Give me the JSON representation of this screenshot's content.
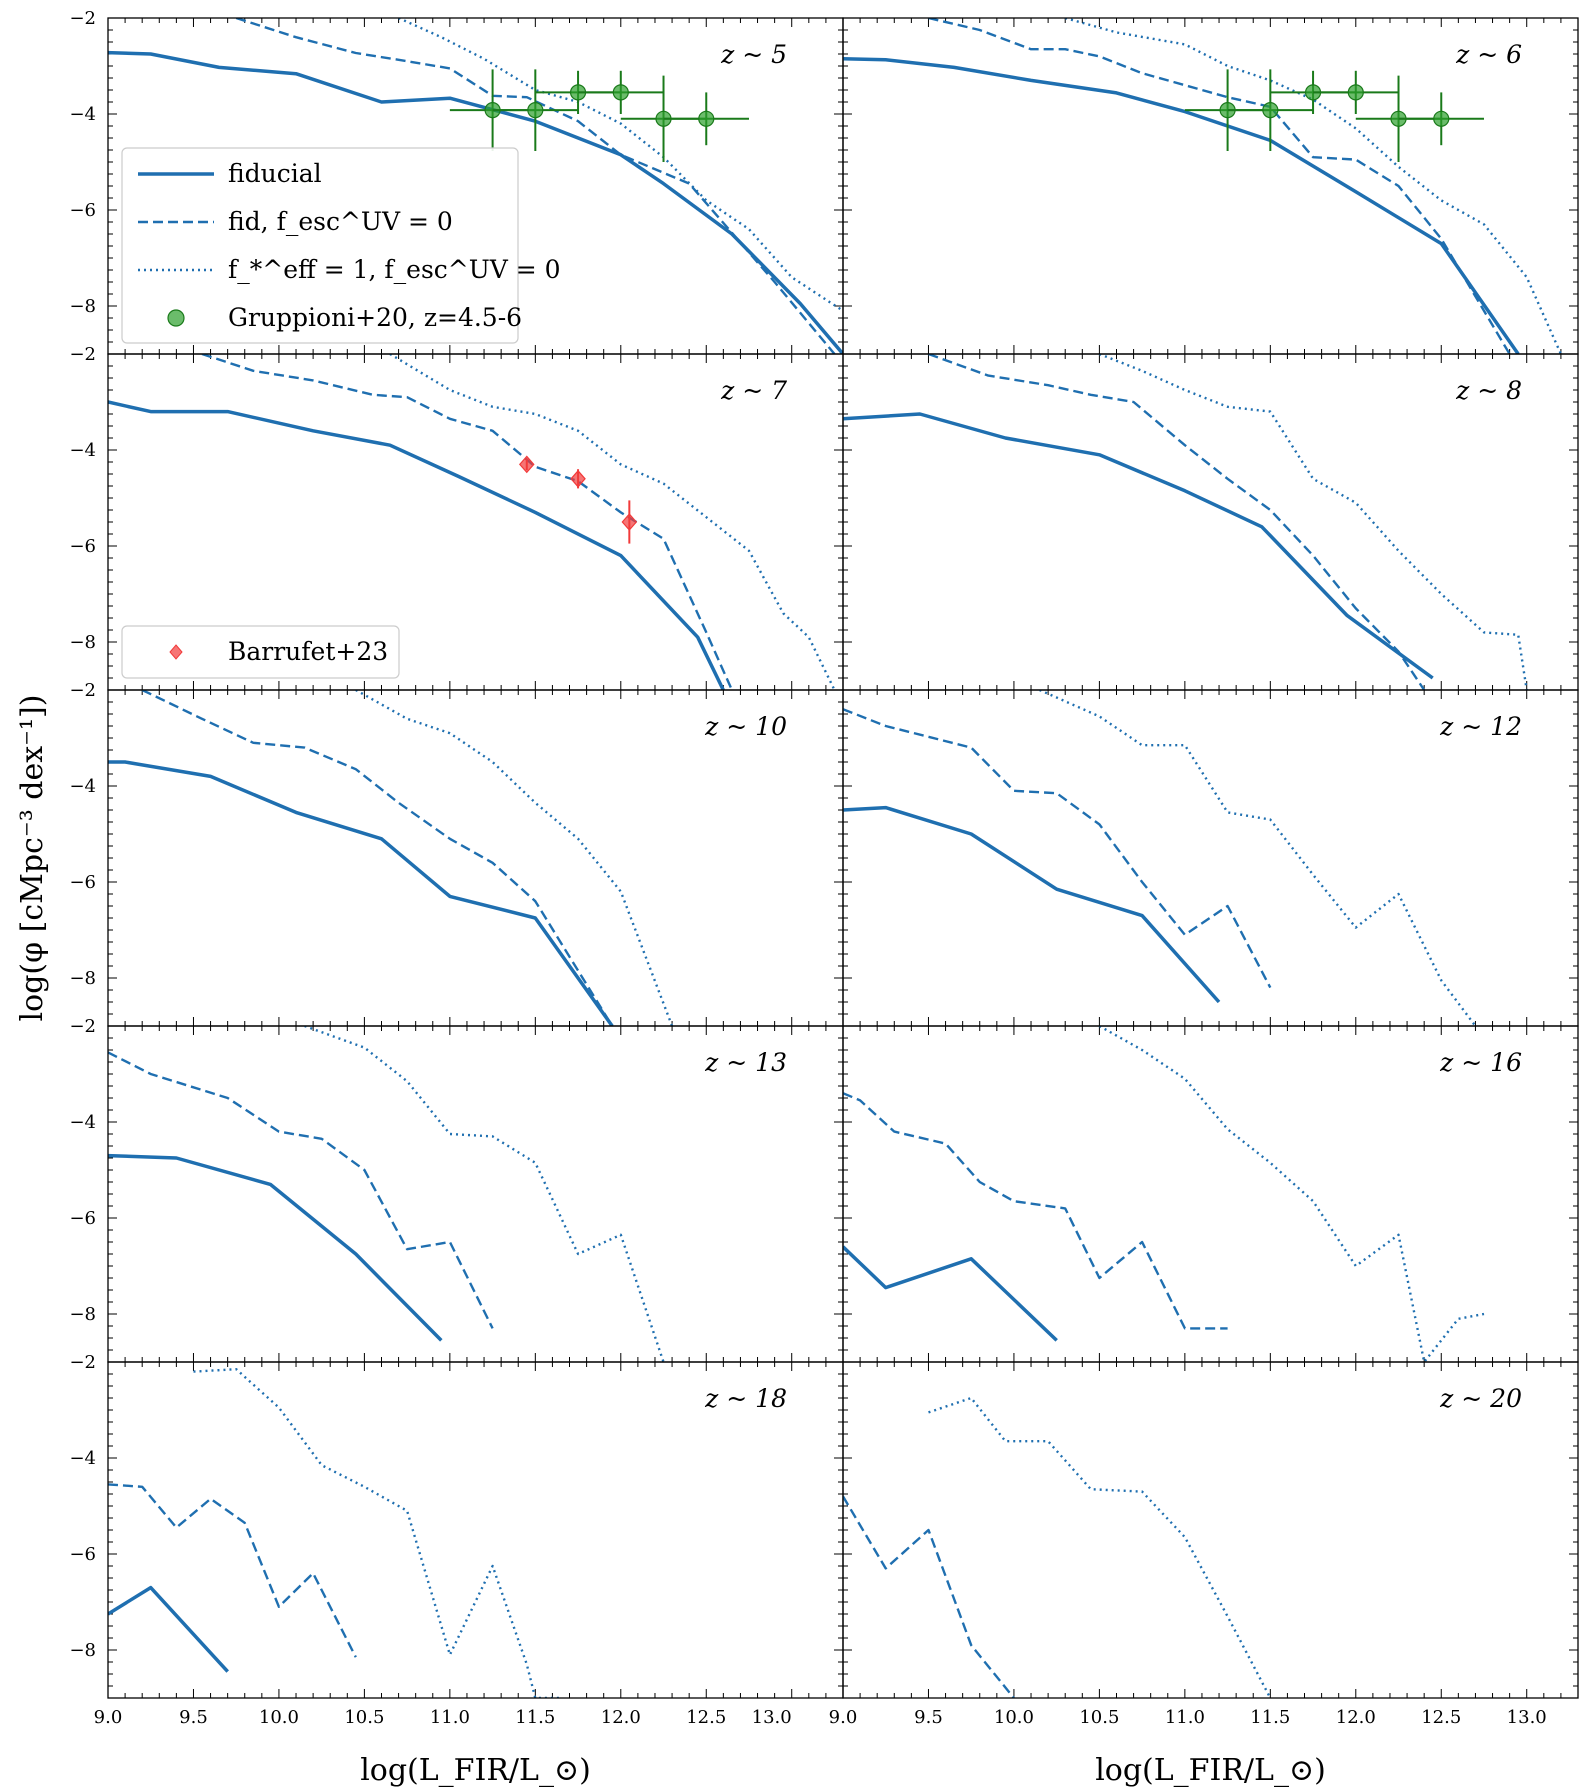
{
  "figure": {
    "xlabel": "log(L_FIR/L_⊙)",
    "ylabel": "log(φ [cMpc⁻³ dex⁻¹])"
  },
  "colors": {
    "model": "#1f6fb0",
    "gruppioni": "#2ca02c",
    "gruppioni_edge": "#1a7a1a",
    "barrufet": "#f23a3a"
  },
  "chart_data": [
    {
      "type": "line",
      "panel": "z ~ 5",
      "xlim": [
        9.0,
        13.3
      ],
      "ylim": [
        -9.0,
        -2.0
      ],
      "xticks": [],
      "yticks": [
        "−2",
        "−4",
        "−6",
        "−8"
      ],
      "series": [
        {
          "name": "fiducial",
          "style": "solid",
          "x": [
            9.0,
            9.25,
            9.65,
            10.1,
            10.6,
            11.0,
            11.5,
            12.0,
            12.25,
            12.65,
            13.05,
            13.3
          ],
          "y": [
            -2.72,
            -2.75,
            -3.03,
            -3.16,
            -3.75,
            -3.67,
            -4.15,
            -4.85,
            -5.45,
            -6.5,
            -7.95,
            -9.0
          ]
        },
        {
          "name": "fid, f_esc^UV = 0",
          "style": "dashed",
          "x": [
            9.75,
            10.1,
            10.45,
            10.75,
            11.0,
            11.25,
            11.45,
            11.75,
            12.0,
            12.4,
            12.9,
            13.25
          ],
          "y": [
            -2.0,
            -2.4,
            -2.73,
            -2.9,
            -3.05,
            -3.62,
            -3.65,
            -4.15,
            -4.85,
            -5.45,
            -7.5,
            -9.0
          ]
        },
        {
          "name": "f_*^eff = 1, f_esc^UV = 0",
          "style": "dotted",
          "x": [
            10.7,
            10.95,
            11.2,
            11.5,
            11.75,
            12.0,
            12.25,
            12.5,
            12.75,
            13.0,
            13.3
          ],
          "y": [
            -2.0,
            -2.4,
            -2.85,
            -3.5,
            -3.75,
            -4.2,
            -4.9,
            -5.8,
            -6.4,
            -7.4,
            -8.1
          ]
        }
      ],
      "points": {
        "name": "Gruppioni+20, z=4.5-6",
        "x": [
          11.25,
          11.5,
          11.75,
          12.0,
          12.25,
          12.5
        ],
        "y": [
          -3.92,
          -3.92,
          -3.55,
          -3.55,
          -4.1,
          -4.1
        ],
        "x_err": [
          0.25,
          0.25,
          0.25,
          0.25,
          0.25,
          0.25
        ],
        "y_err": [
          0.85,
          0.85,
          0.45,
          0.45,
          0.9,
          0.55
        ]
      },
      "legend": [
        "fiducial",
        "fid, f_esc^UV = 0",
        "f_*^eff = 1, f_esc^UV = 0",
        "Gruppioni+20, z=4.5-6"
      ]
    },
    {
      "type": "line",
      "panel": "z ~ 6",
      "xlim": [
        9.0,
        13.3
      ],
      "ylim": [
        -9.0,
        -2.0
      ],
      "xticks": [],
      "yticks": [],
      "series": [
        {
          "name": "fiducial",
          "style": "solid",
          "x": [
            9.0,
            9.25,
            9.65,
            10.1,
            10.6,
            11.0,
            11.5,
            12.0,
            12.5,
            12.95
          ],
          "y": [
            -2.85,
            -2.87,
            -3.03,
            -3.3,
            -3.56,
            -3.95,
            -4.55,
            -5.62,
            -6.7,
            -9.0
          ]
        },
        {
          "name": "fid, f_esc^UV = 0",
          "style": "dashed",
          "x": [
            9.5,
            9.8,
            10.1,
            10.3,
            10.5,
            10.75,
            11.0,
            11.25,
            11.5,
            11.75,
            12.0,
            12.25,
            12.5,
            12.9
          ],
          "y": [
            -2.0,
            -2.25,
            -2.65,
            -2.65,
            -2.8,
            -3.15,
            -3.4,
            -3.65,
            -3.85,
            -4.9,
            -4.95,
            -5.5,
            -6.6,
            -9.0
          ]
        },
        {
          "name": "f_*^eff = 1, f_esc^UV = 0",
          "style": "dotted",
          "x": [
            10.3,
            10.6,
            11.0,
            11.25,
            11.5,
            11.75,
            12.0,
            12.25,
            12.5,
            12.75,
            13.0,
            13.2
          ],
          "y": [
            -2.0,
            -2.3,
            -2.55,
            -3.0,
            -3.3,
            -3.7,
            -4.3,
            -5.1,
            -5.8,
            -6.3,
            -7.4,
            -9.0
          ]
        }
      ],
      "points": {
        "name": "Gruppioni+20, z=4.5-6",
        "x": [
          11.25,
          11.5,
          11.75,
          12.0,
          12.25,
          12.5
        ],
        "y": [
          -3.92,
          -3.92,
          -3.55,
          -3.55,
          -4.1,
          -4.1
        ],
        "x_err": [
          0.25,
          0.25,
          0.25,
          0.25,
          0.25,
          0.25
        ],
        "y_err": [
          0.85,
          0.85,
          0.45,
          0.45,
          0.9,
          0.55
        ]
      }
    },
    {
      "type": "line",
      "panel": "z ~ 7",
      "xlim": [
        9.0,
        13.3
      ],
      "ylim": [
        -9.0,
        -2.0
      ],
      "xticks": [],
      "yticks": [
        "−2",
        "−4",
        "−6",
        "−8"
      ],
      "series": [
        {
          "name": "fiducial",
          "style": "solid",
          "x": [
            9.0,
            9.25,
            9.7,
            10.2,
            10.65,
            11.05,
            11.5,
            12.0,
            12.45,
            12.6
          ],
          "y": [
            -3.0,
            -3.2,
            -3.2,
            -3.6,
            -3.9,
            -4.55,
            -5.3,
            -6.2,
            -7.9,
            -9.0
          ]
        },
        {
          "name": "fid, f_esc^UV = 0",
          "style": "dashed",
          "x": [
            9.55,
            9.85,
            10.2,
            10.55,
            10.75,
            11.0,
            11.25,
            11.5,
            11.75,
            12.0,
            12.25,
            12.5,
            12.65
          ],
          "y": [
            -2.0,
            -2.35,
            -2.55,
            -2.85,
            -2.9,
            -3.35,
            -3.6,
            -4.35,
            -4.65,
            -5.3,
            -5.85,
            -7.8,
            -9.0
          ]
        },
        {
          "name": "f_*^eff = 1, f_esc^UV = 0",
          "style": "dotted",
          "x": [
            10.65,
            11.0,
            11.25,
            11.5,
            11.75,
            12.0,
            12.25,
            12.5,
            12.75,
            12.95,
            13.1,
            13.25
          ],
          "y": [
            -2.0,
            -2.75,
            -3.1,
            -3.25,
            -3.6,
            -4.3,
            -4.7,
            -5.4,
            -6.1,
            -7.4,
            -7.9,
            -9.0
          ]
        }
      ],
      "points": {
        "name": "Barrufet+23",
        "x": [
          11.45,
          11.75,
          12.05
        ],
        "y": [
          -4.3,
          -4.6,
          -5.5
        ],
        "y_err": [
          0.12,
          0.2,
          0.45
        ]
      },
      "legend": [
        "Barrufet+23"
      ]
    },
    {
      "type": "line",
      "panel": "z ~ 8",
      "xlim": [
        9.0,
        13.3
      ],
      "ylim": [
        -9.0,
        -2.0
      ],
      "xticks": [],
      "yticks": [],
      "series": [
        {
          "name": "fiducial",
          "style": "solid",
          "x": [
            9.0,
            9.45,
            9.95,
            10.5,
            11.0,
            11.45,
            11.95,
            12.45
          ],
          "y": [
            -3.35,
            -3.25,
            -3.75,
            -4.1,
            -4.85,
            -5.6,
            -7.45,
            -8.75
          ]
        },
        {
          "name": "fid, f_esc^UV = 0",
          "style": "dashed",
          "x": [
            9.5,
            9.85,
            10.2,
            10.45,
            10.7,
            11.0,
            11.25,
            11.5,
            11.75,
            12.0,
            12.25,
            12.4
          ],
          "y": [
            -2.0,
            -2.45,
            -2.65,
            -2.85,
            -3.0,
            -3.9,
            -4.6,
            -5.25,
            -6.2,
            -7.3,
            -8.2,
            -9.0
          ]
        },
        {
          "name": "f_*^eff = 1, f_esc^UV = 0",
          "style": "dotted",
          "x": [
            10.5,
            10.75,
            11.0,
            11.25,
            11.5,
            11.75,
            12.0,
            12.25,
            12.5,
            12.75,
            12.95,
            13.0
          ],
          "y": [
            -2.0,
            -2.35,
            -2.75,
            -3.1,
            -3.2,
            -4.6,
            -5.1,
            -6.1,
            -7.0,
            -7.8,
            -7.85,
            -9.0
          ]
        }
      ]
    },
    {
      "type": "line",
      "panel": "z ~ 10",
      "xlim": [
        9.0,
        13.3
      ],
      "ylim": [
        -9.0,
        -2.0
      ],
      "xticks": [],
      "yticks": [
        "−2",
        "−4",
        "−6",
        "−8"
      ],
      "series": [
        {
          "name": "fiducial",
          "style": "solid",
          "x": [
            9.0,
            9.1,
            9.6,
            10.1,
            10.6,
            11.0,
            11.5,
            11.95
          ],
          "y": [
            -3.5,
            -3.5,
            -3.8,
            -4.55,
            -5.1,
            -6.3,
            -6.75,
            -9.0
          ]
        },
        {
          "name": "fid, f_esc^UV = 0",
          "style": "dashed",
          "x": [
            9.2,
            9.55,
            9.85,
            10.15,
            10.45,
            10.7,
            11.0,
            11.25,
            11.5,
            11.95
          ],
          "y": [
            -2.0,
            -2.6,
            -3.1,
            -3.2,
            -3.65,
            -4.35,
            -5.1,
            -5.6,
            -6.4,
            -9.0
          ]
        },
        {
          "name": "f_*^eff = 1, f_esc^UV = 0",
          "style": "dotted",
          "x": [
            10.45,
            10.75,
            11.0,
            11.25,
            11.5,
            11.75,
            12.0,
            12.3
          ],
          "y": [
            -2.0,
            -2.6,
            -2.9,
            -3.5,
            -4.35,
            -5.1,
            -6.2,
            -9.0
          ]
        }
      ]
    },
    {
      "type": "line",
      "panel": "z ~ 12",
      "xlim": [
        9.0,
        13.3
      ],
      "ylim": [
        -9.0,
        -2.0
      ],
      "xticks": [],
      "yticks": [],
      "series": [
        {
          "name": "fiducial",
          "style": "solid",
          "x": [
            9.0,
            9.25,
            9.75,
            10.25,
            10.75,
            11.2
          ],
          "y": [
            -4.5,
            -4.45,
            -5.0,
            -6.15,
            -6.7,
            -8.5
          ]
        },
        {
          "name": "fid, f_esc^UV = 0",
          "style": "dashed",
          "x": [
            9.0,
            9.25,
            9.75,
            10.0,
            10.25,
            10.5,
            10.75,
            11.0,
            11.25,
            11.5
          ],
          "y": [
            -2.4,
            -2.75,
            -3.2,
            -4.1,
            -4.15,
            -4.8,
            -6.0,
            -7.1,
            -6.5,
            -8.2
          ]
        },
        {
          "name": "f_*^eff = 1, f_esc^UV = 0",
          "style": "dotted",
          "x": [
            10.15,
            10.5,
            10.75,
            11.0,
            11.25,
            11.5,
            11.75,
            12.0,
            12.25,
            12.5,
            12.7
          ],
          "y": [
            -2.0,
            -2.55,
            -3.15,
            -3.15,
            -4.55,
            -4.7,
            -5.85,
            -6.95,
            -6.25,
            -8.05,
            -9.0
          ]
        }
      ]
    },
    {
      "type": "line",
      "panel": "z ~ 13",
      "xlim": [
        9.0,
        13.3
      ],
      "ylim": [
        -9.0,
        -2.0
      ],
      "xticks": [],
      "yticks": [
        "−2",
        "−4",
        "−6",
        "−8"
      ],
      "series": [
        {
          "name": "fiducial",
          "style": "solid",
          "x": [
            9.0,
            9.4,
            9.95,
            10.45,
            10.95
          ],
          "y": [
            -4.7,
            -4.75,
            -5.3,
            -6.75,
            -8.55
          ]
        },
        {
          "name": "fid, f_esc^UV = 0",
          "style": "dashed",
          "x": [
            9.0,
            9.25,
            9.7,
            10.0,
            10.25,
            10.5,
            10.75,
            11.0,
            11.25
          ],
          "y": [
            -2.55,
            -3.0,
            -3.5,
            -4.2,
            -4.35,
            -5.0,
            -6.65,
            -6.5,
            -8.3
          ]
        },
        {
          "name": "f_*^eff = 1, f_esc^UV = 0",
          "style": "dotted",
          "x": [
            10.15,
            10.5,
            10.75,
            11.0,
            11.25,
            11.5,
            11.75,
            12.0,
            12.25
          ],
          "y": [
            -2.0,
            -2.45,
            -3.15,
            -4.25,
            -4.3,
            -4.85,
            -6.75,
            -6.35,
            -9.0
          ]
        }
      ]
    },
    {
      "type": "line",
      "panel": "z ~ 16",
      "xlim": [
        9.0,
        13.3
      ],
      "ylim": [
        -9.0,
        -2.0
      ],
      "xticks": [],
      "yticks": [],
      "series": [
        {
          "name": "fiducial",
          "style": "solid",
          "x": [
            9.0,
            9.25,
            9.75,
            10.25
          ],
          "y": [
            -6.6,
            -7.45,
            -6.85,
            -8.55
          ]
        },
        {
          "name": "fid, f_esc^UV = 0",
          "style": "dashed",
          "x": [
            9.0,
            9.1,
            9.3,
            9.6,
            9.8,
            10.0,
            10.3,
            10.5,
            10.75,
            11.0,
            11.25
          ],
          "y": [
            -3.4,
            -3.55,
            -4.2,
            -4.45,
            -5.25,
            -5.65,
            -5.8,
            -7.25,
            -6.5,
            -8.3,
            -8.3
          ]
        },
        {
          "name": "f_*^eff = 1, f_esc^UV = 0",
          "style": "dotted",
          "x": [
            10.5,
            10.75,
            11.0,
            11.25,
            11.5,
            11.75,
            12.0,
            12.25,
            12.4,
            12.6,
            12.75
          ],
          "y": [
            -2.0,
            -2.5,
            -3.1,
            -4.15,
            -4.85,
            -5.65,
            -7.0,
            -6.35,
            -9.0,
            -8.1,
            -8.0
          ]
        }
      ]
    },
    {
      "type": "line",
      "panel": "z ~ 18",
      "xlim": [
        9.0,
        13.3
      ],
      "ylim": [
        -9.0,
        -2.0
      ],
      "xticks": [
        "9.0",
        "9.5",
        "10.0",
        "10.5",
        "11.0",
        "11.5",
        "12.0",
        "12.5",
        "13.0"
      ],
      "yticks": [
        "−2",
        "−4",
        "−6",
        "−8"
      ],
      "series": [
        {
          "name": "fiducial",
          "style": "solid",
          "x": [
            9.0,
            9.25,
            9.7
          ],
          "y": [
            -7.25,
            -6.7,
            -8.45
          ]
        },
        {
          "name": "fid, f_esc^UV = 0",
          "style": "dashed",
          "x": [
            9.0,
            9.2,
            9.4,
            9.6,
            9.8,
            10.0,
            10.2,
            10.45
          ],
          "y": [
            -4.55,
            -4.6,
            -5.45,
            -4.85,
            -5.35,
            -7.1,
            -6.4,
            -8.15
          ]
        },
        {
          "name": "f_*^eff = 1, f_esc^UV = 0",
          "style": "dotted",
          "x": [
            9.5,
            9.75,
            10.0,
            10.25,
            10.5,
            10.75,
            11.0,
            11.25,
            11.45,
            11.5,
            11.65
          ],
          "y": [
            -2.2,
            -2.15,
            -2.95,
            -4.15,
            -4.6,
            -5.1,
            -8.1,
            -6.25,
            -8.3,
            -9.0,
            -9.0
          ]
        }
      ]
    },
    {
      "type": "line",
      "panel": "z ~ 20",
      "xlim": [
        9.0,
        13.3
      ],
      "ylim": [
        -9.0,
        -2.0
      ],
      "xticks": [
        "9.0",
        "9.5",
        "10.0",
        "10.5",
        "11.0",
        "11.5",
        "12.0",
        "12.5",
        "13.0"
      ],
      "yticks": [],
      "series": [
        {
          "name": "fid, f_esc^UV = 0",
          "style": "dashed",
          "x": [
            9.0,
            9.25,
            9.5,
            9.75,
            10.0
          ],
          "y": [
            -4.8,
            -6.3,
            -5.5,
            -7.9,
            -9.0
          ]
        },
        {
          "name": "f_*^eff = 1, f_esc^UV = 0",
          "style": "dotted",
          "x": [
            9.5,
            9.75,
            9.95,
            10.2,
            10.45,
            10.75,
            11.0,
            11.25,
            11.5
          ],
          "y": [
            -3.05,
            -2.75,
            -3.65,
            -3.65,
            -4.65,
            -4.7,
            -5.65,
            -7.3,
            -9.0
          ]
        }
      ]
    }
  ]
}
